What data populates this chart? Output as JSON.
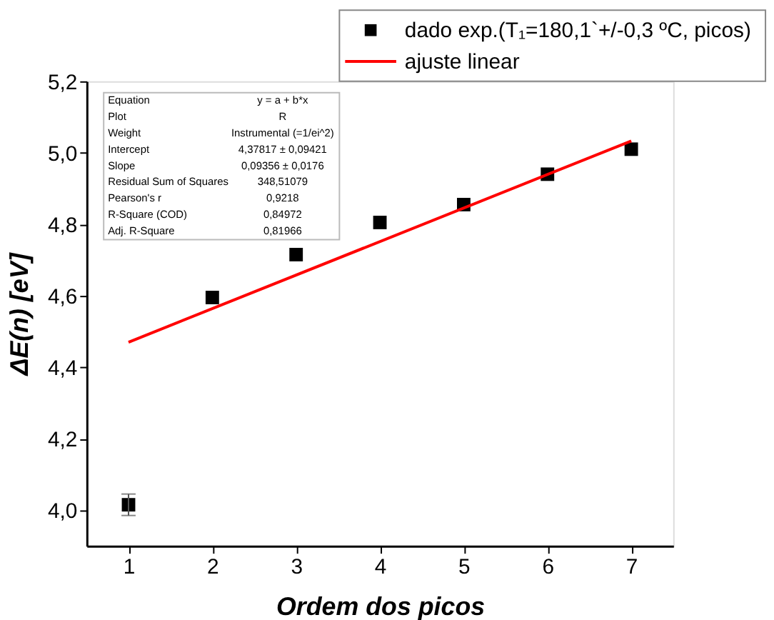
{
  "chart_data": {
    "type": "scatter",
    "xlabel": "Ordem dos picos",
    "ylabel": "ΔE(n) [eV]",
    "x": [
      1,
      2,
      3,
      4,
      5,
      6,
      7
    ],
    "series": [
      {
        "name": "dado exp.(T₁=180,1`+/-0,3 ºC, picos)",
        "type": "scatter",
        "color": "#000000",
        "marker": "square",
        "values": [
          4.015,
          4.595,
          4.715,
          4.805,
          4.855,
          4.94,
          5.01
        ],
        "errors": [
          0.03,
          null,
          null,
          null,
          null,
          null,
          null
        ]
      },
      {
        "name": "ajuste linear",
        "type": "line",
        "color": "#ff0000",
        "marker": "none",
        "x": [
          1,
          7
        ],
        "values": [
          4.47,
          5.033
        ]
      }
    ],
    "xlim": [
      0.5,
      7.5
    ],
    "xticks": [
      1,
      2,
      3,
      4,
      5,
      6,
      7
    ],
    "ylim": [
      3.9,
      5.2
    ],
    "yticks": [
      {
        "value": 4.0,
        "label": "4,0"
      },
      {
        "value": 4.2,
        "label": "4,2"
      },
      {
        "value": 4.4,
        "label": "4,4"
      },
      {
        "value": 4.6,
        "label": "4,6"
      },
      {
        "value": 4.8,
        "label": "4,8"
      },
      {
        "value": 5.0,
        "label": "5,0"
      },
      {
        "value": 5.2,
        "label": "5,2"
      }
    ],
    "grid": false,
    "legend": "top right",
    "annotations": [
      "Equation",
      "y = a + b*x",
      "Plot",
      "R",
      "Weight",
      "Instrumental (=1/ei^2)",
      "Intercept",
      "4,37817 ± 0,09421",
      "Slope",
      "0,09356 ± 0,0176",
      "Residual Sum of Squares",
      "348,51079",
      "Pearson's r",
      "0,9218",
      "R-Square (COD)",
      "0,84972",
      "Adj. R-Square",
      "0,81966"
    ]
  }
}
